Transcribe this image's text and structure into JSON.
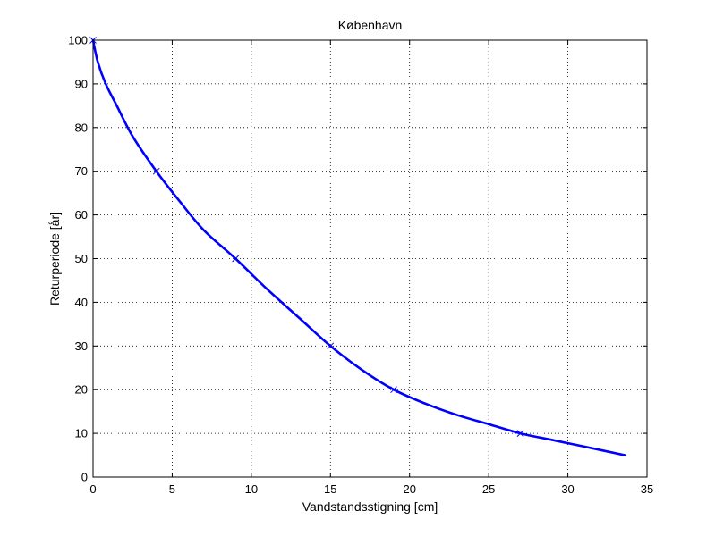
{
  "chart_data": {
    "type": "line",
    "title": "København",
    "xlabel": "Vandstandsstigning [cm]",
    "ylabel": "Returperiode [år]",
    "xlim": [
      0,
      35
    ],
    "ylim": [
      0,
      100
    ],
    "xticks": [
      0,
      5,
      10,
      15,
      20,
      25,
      30,
      35
    ],
    "yticks": [
      0,
      10,
      20,
      30,
      40,
      50,
      60,
      70,
      80,
      90,
      100
    ],
    "grid": true,
    "series": [
      {
        "color": "#0000ff",
        "curve": {
          "x": [
            0,
            0.3,
            0.8,
            1.5,
            2.5,
            4,
            5.5,
            7,
            9,
            11,
            13,
            15,
            17,
            19,
            21,
            23,
            25,
            27,
            29,
            31,
            33.6
          ],
          "y": [
            100,
            95,
            90,
            85,
            78,
            70,
            63,
            56.5,
            50,
            43,
            36.5,
            30,
            24.5,
            20,
            16.8,
            14.2,
            12.1,
            10,
            8.5,
            7,
            5
          ]
        },
        "markers": {
          "symbol": "x",
          "x": [
            0,
            4,
            9,
            15,
            19,
            27
          ],
          "y": [
            100,
            70,
            50,
            30,
            20,
            10
          ]
        }
      }
    ]
  }
}
